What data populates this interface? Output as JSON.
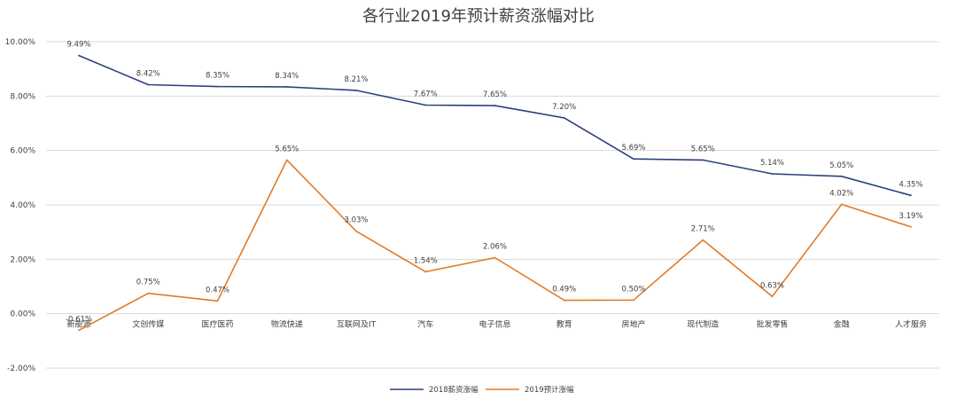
{
  "chart_data": {
    "type": "line",
    "title": "各行业2019年预计薪资涨幅对比",
    "xlabel": "",
    "ylabel": "",
    "categories": [
      "新能源",
      "文创传媒",
      "医疗医药",
      "物流快递",
      "互联网及IT",
      "汽车",
      "电子信息",
      "教育",
      "房地产",
      "现代制造",
      "批发零售",
      "金融",
      "人才服务"
    ],
    "ylim": [
      -2,
      10
    ],
    "yticks": [
      -2,
      0,
      2,
      4,
      6,
      8,
      10
    ],
    "ytick_labels": [
      "-2.00%",
      "0.00%",
      "2.00%",
      "4.00%",
      "6.00%",
      "8.00%",
      "10.00%"
    ],
    "grid": true,
    "legend_position": "bottom",
    "series": [
      {
        "name": "2018薪资涨幅",
        "color": "#2E3F7F",
        "values": [
          9.49,
          8.42,
          8.35,
          8.34,
          8.21,
          7.67,
          7.65,
          7.2,
          5.69,
          5.65,
          5.14,
          5.05,
          4.35
        ],
        "labels": [
          "9.49%",
          "8.42%",
          "8.35%",
          "8.34%",
          "8.21%",
          "7.67%",
          "7.65%",
          "7.20%",
          "5.69%",
          "5.65%",
          "5.14%",
          "5.05%",
          "4.35%"
        ]
      },
      {
        "name": "2019预计涨幅",
        "color": "#E07B28",
        "values": [
          -0.61,
          0.75,
          0.47,
          5.65,
          3.03,
          1.54,
          2.06,
          0.49,
          0.5,
          2.71,
          0.63,
          4.02,
          3.19
        ],
        "labels": [
          "-0.61%",
          "0.75%",
          "0.47%",
          "5.65%",
          "3.03%",
          "1.54%",
          "2.06%",
          "0.49%",
          "0.50%",
          "2.71%",
          "0.63%",
          "4.02%",
          "3.19%"
        ]
      }
    ]
  }
}
